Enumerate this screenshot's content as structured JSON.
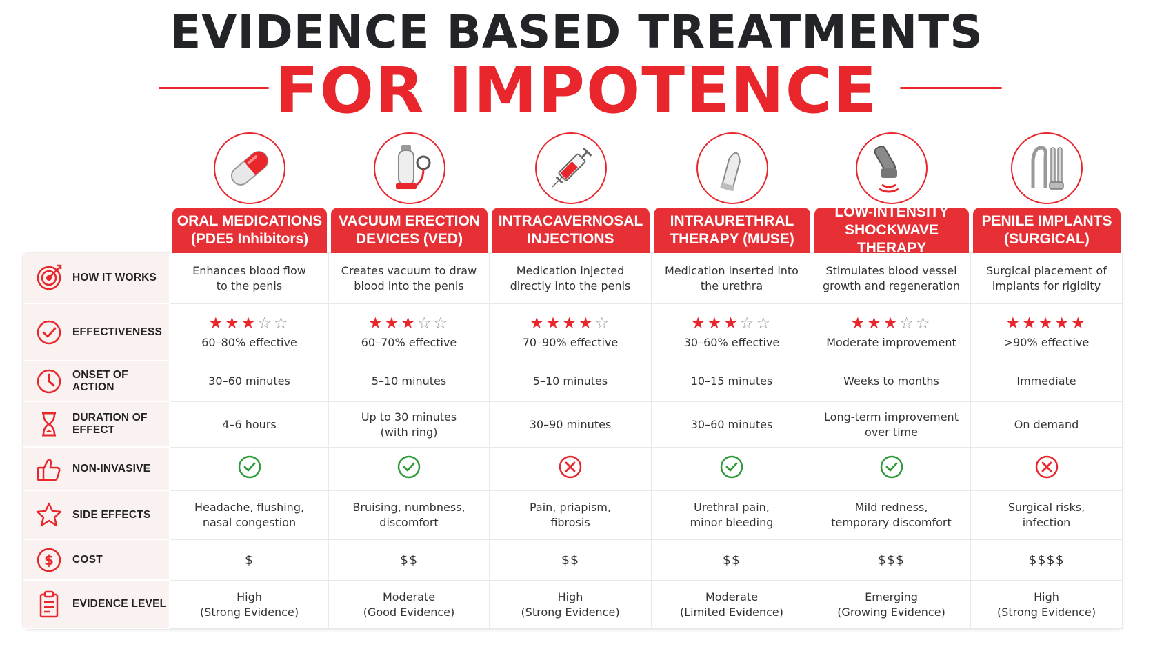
{
  "title": {
    "line1": "EVIDENCE BASED TREATMENTS",
    "line2": "FOR IMPOTENCE"
  },
  "colors": {
    "accent": "#e8262b",
    "header_bg": "#e63036",
    "check": "#2e9a3a",
    "label_bg": "#faf1f1"
  },
  "columns": [
    {
      "line1": "ORAL MEDICATIONS",
      "line2": "(PDE5 Inhibitors)",
      "icon": "pill-capsule-icon"
    },
    {
      "line1": "VACUUM ERECTION",
      "line2": "DEVICES (VED)",
      "icon": "vacuum-pump-icon"
    },
    {
      "line1": "INTRACAVERNOSAL",
      "line2": "INJECTIONS",
      "icon": "syringe-icon"
    },
    {
      "line1": "INTRAURETHRAL",
      "line2": "THERAPY (MUSE)",
      "icon": "suppository-icon"
    },
    {
      "line1": "LOW-INTENSITY",
      "line2": "SHOCKWAVE THERAPY",
      "icon": "shockwave-device-icon"
    },
    {
      "line1": "PENILE IMPLANTS",
      "line2": "(SURGICAL)",
      "icon": "penile-implant-icon"
    }
  ],
  "rows": [
    {
      "label": "HOW IT WORKS",
      "icon": "target-icon",
      "cells": [
        {
          "l1": "Enhances blood flow",
          "l2": "to the penis"
        },
        {
          "l1": "Creates vacuum to draw",
          "l2": "blood into the penis"
        },
        {
          "l1": "Medication injected",
          "l2": "directly into the penis"
        },
        {
          "l1": "Medication inserted into",
          "l2": "the urethra"
        },
        {
          "l1": "Stimulates blood vessel",
          "l2": "growth and regeneration"
        },
        {
          "l1": "Surgical placement of",
          "l2": "implants for rigidity"
        }
      ]
    },
    {
      "label": "EFFECTIVENESS",
      "icon": "check-circle-icon",
      "cells": [
        {
          "stars": 3,
          "l1": "60–80% effective"
        },
        {
          "stars": 3,
          "l1": "60–70% effective"
        },
        {
          "stars": 4,
          "l1": "70–90% effective"
        },
        {
          "stars": 3,
          "l1": "30–60% effective"
        },
        {
          "stars": 3,
          "l1": "Moderate improvement"
        },
        {
          "stars": 5,
          "l1": ">90% effective"
        }
      ]
    },
    {
      "label": "ONSET OF ACTION",
      "icon": "clock-icon",
      "cells": [
        {
          "l1": "30–60 minutes"
        },
        {
          "l1": "5–10 minutes"
        },
        {
          "l1": "5–10 minutes"
        },
        {
          "l1": "10–15 minutes"
        },
        {
          "l1": "Weeks to months"
        },
        {
          "l1": "Immediate"
        }
      ]
    },
    {
      "label": "DURATION OF EFFECT",
      "icon": "hourglass-icon",
      "cells": [
        {
          "l1": "4–6 hours"
        },
        {
          "l1": "Up to 30 minutes",
          "l2": "(with ring)"
        },
        {
          "l1": "30–90 minutes"
        },
        {
          "l1": "30–60 minutes"
        },
        {
          "l1": "Long-term improvement",
          "l2": "over time"
        },
        {
          "l1": "On demand"
        }
      ]
    },
    {
      "label": "NON-INVASIVE",
      "icon": "thumbs-up-icon",
      "cells": [
        {
          "mark": "yes"
        },
        {
          "mark": "yes"
        },
        {
          "mark": "no"
        },
        {
          "mark": "yes"
        },
        {
          "mark": "yes"
        },
        {
          "mark": "no"
        }
      ]
    },
    {
      "label": "SIDE EFFECTS",
      "icon": "star-outline-icon",
      "cells": [
        {
          "l1": "Headache, flushing,",
          "l2": "nasal congestion"
        },
        {
          "l1": "Bruising, numbness,",
          "l2": "discomfort"
        },
        {
          "l1": "Pain, priapism,",
          "l2": "fibrosis"
        },
        {
          "l1": "Urethral pain,",
          "l2": "minor bleeding"
        },
        {
          "l1": "Mild redness,",
          "l2": "temporary discomfort"
        },
        {
          "l1": "Surgical risks,",
          "l2": "infection"
        }
      ]
    },
    {
      "label": "COST",
      "icon": "dollar-circle-icon",
      "cells": [
        {
          "money": "$"
        },
        {
          "money": "$$"
        },
        {
          "money": "$$"
        },
        {
          "money": "$$"
        },
        {
          "money": "$$$"
        },
        {
          "money": "$$$$"
        }
      ]
    },
    {
      "label": "EVIDENCE LEVEL",
      "icon": "clipboard-icon",
      "cells": [
        {
          "l1": "High",
          "l2": "(Strong Evidence)"
        },
        {
          "l1": "Moderate",
          "l2": "(Good Evidence)"
        },
        {
          "l1": "High",
          "l2": "(Strong Evidence)"
        },
        {
          "l1": "Moderate",
          "l2": "(Limited Evidence)"
        },
        {
          "l1": "Emerging",
          "l2": "(Growing Evidence)"
        },
        {
          "l1": "High",
          "l2": "(Strong Evidence)"
        }
      ]
    }
  ]
}
